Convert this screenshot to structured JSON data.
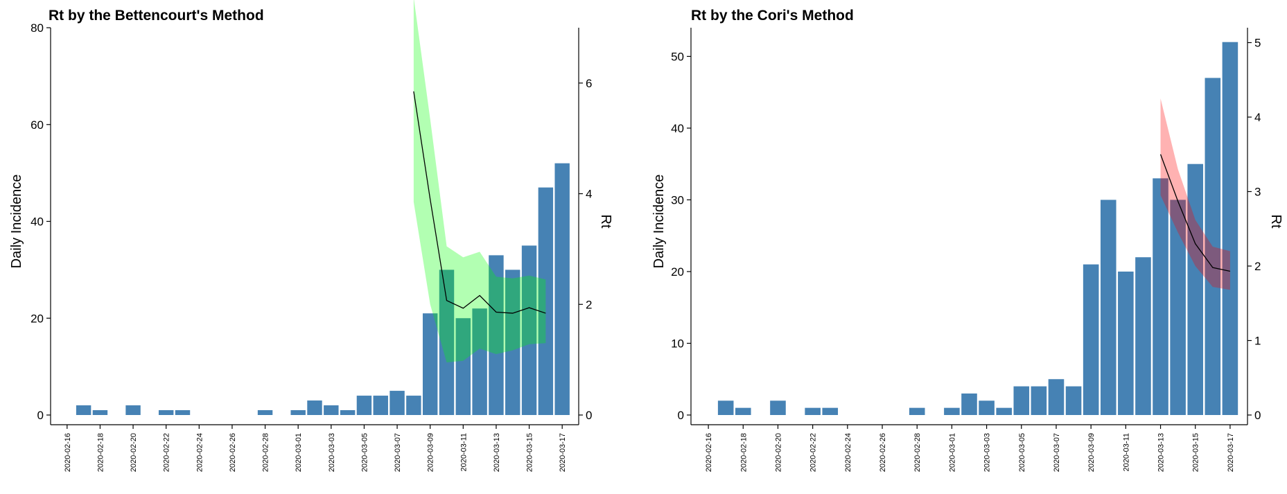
{
  "chart_data": [
    {
      "type": "bar",
      "title": "Rt by the Bettencourt's Method",
      "ylabel": "Daily Incidence",
      "y2label": "Rt",
      "ylim": [
        0,
        80
      ],
      "yticks": [
        0,
        20,
        40,
        60,
        80
      ],
      "y2lim": [
        0,
        7
      ],
      "y2ticks": [
        0,
        2,
        4,
        6
      ],
      "x_ticks": [
        "2020-02-16",
        "2020-02-18",
        "2020-02-20",
        "2020-02-22",
        "2020-02-24",
        "2020-02-26",
        "2020-02-28",
        "2020-03-01",
        "2020-03-03",
        "2020-03-05",
        "2020-03-07",
        "2020-03-09",
        "2020-03-11",
        "2020-03-13",
        "2020-03-15",
        "2020-03-17"
      ],
      "x": [
        "2020-02-16",
        "2020-02-17",
        "2020-02-18",
        "2020-02-19",
        "2020-02-20",
        "2020-02-21",
        "2020-02-22",
        "2020-02-23",
        "2020-02-24",
        "2020-02-25",
        "2020-02-26",
        "2020-02-27",
        "2020-02-28",
        "2020-02-29",
        "2020-03-01",
        "2020-03-02",
        "2020-03-03",
        "2020-03-04",
        "2020-03-05",
        "2020-03-06",
        "2020-03-07",
        "2020-03-08",
        "2020-03-09",
        "2020-03-10",
        "2020-03-11",
        "2020-03-12",
        "2020-03-13",
        "2020-03-14",
        "2020-03-15",
        "2020-03-16",
        "2020-03-17"
      ],
      "series": [
        {
          "type": "bar",
          "color": "#4682B4",
          "values": [
            0,
            2,
            1,
            0,
            2,
            0,
            1,
            1,
            0,
            0,
            0,
            0,
            1,
            0,
            1,
            3,
            2,
            1,
            4,
            4,
            5,
            4,
            21,
            30,
            20,
            22,
            33,
            30,
            35,
            47,
            52
          ]
        },
        {
          "type": "line",
          "axis": "right",
          "color": "#000000",
          "x": [
            "2020-03-08",
            "2020-03-09",
            "2020-03-10",
            "2020-03-11",
            "2020-03-12",
            "2020-03-13",
            "2020-03-14",
            "2020-03-15",
            "2020-03-16"
          ],
          "values": [
            5.85,
            3.9,
            2.07,
            1.93,
            2.16,
            1.86,
            1.84,
            1.94,
            1.84
          ],
          "band": {
            "color": "#00FF00",
            "opacity": 0.3,
            "lower": [
              3.85,
              2.0,
              0.95,
              0.98,
              1.2,
              1.1,
              1.17,
              1.28,
              1.3
            ],
            "upper": [
              7.55,
              5.35,
              3.05,
              2.85,
              2.95,
              2.5,
              2.47,
              2.52,
              2.45
            ]
          }
        }
      ]
    },
    {
      "type": "bar",
      "title": "Rt by the Cori's Method",
      "ylabel": "Daily Incidence",
      "y2label": "Rt",
      "ylim": [
        0,
        54
      ],
      "yticks": [
        0,
        10,
        20,
        30,
        40,
        50
      ],
      "y2lim": [
        0,
        5.2
      ],
      "y2ticks": [
        0,
        1,
        2,
        3,
        4,
        5
      ],
      "x_ticks": [
        "2020-02-16",
        "2020-02-18",
        "2020-02-20",
        "2020-02-22",
        "2020-02-24",
        "2020-02-26",
        "2020-02-28",
        "2020-03-01",
        "2020-03-03",
        "2020-03-05",
        "2020-03-07",
        "2020-03-09",
        "2020-03-11",
        "2020-03-13",
        "2020-03-15",
        "2020-03-17"
      ],
      "x": [
        "2020-02-16",
        "2020-02-17",
        "2020-02-18",
        "2020-02-19",
        "2020-02-20",
        "2020-02-21",
        "2020-02-22",
        "2020-02-23",
        "2020-02-24",
        "2020-02-25",
        "2020-02-26",
        "2020-02-27",
        "2020-02-28",
        "2020-02-29",
        "2020-03-01",
        "2020-03-02",
        "2020-03-03",
        "2020-03-04",
        "2020-03-05",
        "2020-03-06",
        "2020-03-07",
        "2020-03-08",
        "2020-03-09",
        "2020-03-10",
        "2020-03-11",
        "2020-03-12",
        "2020-03-13",
        "2020-03-14",
        "2020-03-15",
        "2020-03-16",
        "2020-03-17"
      ],
      "series": [
        {
          "type": "bar",
          "color": "#4682B4",
          "values": [
            0,
            2,
            1,
            0,
            2,
            0,
            1,
            1,
            0,
            0,
            0,
            0,
            1,
            0,
            1,
            3,
            2,
            1,
            4,
            4,
            5,
            4,
            21,
            30,
            20,
            22,
            33,
            30,
            35,
            47,
            52
          ]
        },
        {
          "type": "line",
          "axis": "right",
          "color": "#000000",
          "x": [
            "2020-03-13",
            "2020-03-14",
            "2020-03-15",
            "2020-03-16",
            "2020-03-17"
          ],
          "values": [
            3.5,
            2.87,
            2.3,
            1.98,
            1.93
          ],
          "band": {
            "color": "#FF0000",
            "opacity": 0.3,
            "lower": [
              2.95,
              2.45,
              2.0,
              1.72,
              1.68
            ],
            "upper": [
              4.25,
              3.3,
              2.62,
              2.26,
              2.2
            ]
          }
        }
      ]
    }
  ]
}
